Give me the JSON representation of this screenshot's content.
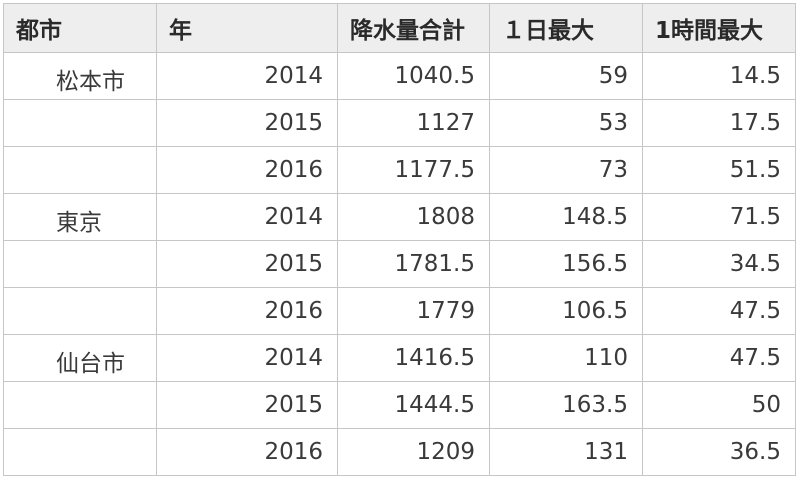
{
  "headers": [
    "都市",
    "年",
    "降水量合計",
    "１日最大",
    "1時間最大"
  ],
  "rows": [
    {
      "city": "松本市",
      "year": "2014",
      "total": "1040.5",
      "day_max": "59",
      "hour_max": "14.5"
    },
    {
      "city": "",
      "year": "2015",
      "total": "1127",
      "day_max": "53",
      "hour_max": "17.5"
    },
    {
      "city": "",
      "year": "2016",
      "total": "1177.5",
      "day_max": "73",
      "hour_max": "51.5"
    },
    {
      "city": "東京",
      "year": "2014",
      "total": "1808",
      "day_max": "148.5",
      "hour_max": "71.5"
    },
    {
      "city": "",
      "year": "2015",
      "total": "1781.5",
      "day_max": "156.5",
      "hour_max": "34.5"
    },
    {
      "city": "",
      "year": "2016",
      "total": "1779",
      "day_max": "106.5",
      "hour_max": "47.5"
    },
    {
      "city": "仙台市",
      "year": "2014",
      "total": "1416.5",
      "day_max": "110",
      "hour_max": "47.5"
    },
    {
      "city": "",
      "year": "2015",
      "total": "1444.5",
      "day_max": "163.5",
      "hour_max": "50"
    },
    {
      "city": "",
      "year": "2016",
      "total": "1209",
      "day_max": "131",
      "hour_max": "36.5"
    }
  ]
}
